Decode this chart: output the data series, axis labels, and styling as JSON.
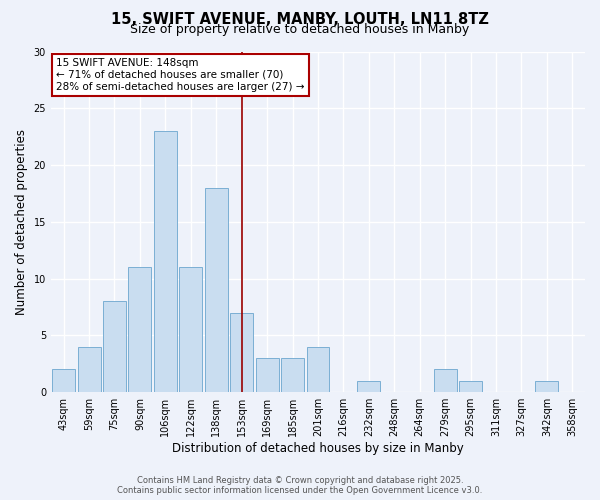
{
  "title": "15, SWIFT AVENUE, MANBY, LOUTH, LN11 8TZ",
  "subtitle": "Size of property relative to detached houses in Manby",
  "xlabel": "Distribution of detached houses by size in Manby",
  "ylabel": "Number of detached properties",
  "bar_labels": [
    "43sqm",
    "59sqm",
    "75sqm",
    "90sqm",
    "106sqm",
    "122sqm",
    "138sqm",
    "153sqm",
    "169sqm",
    "185sqm",
    "201sqm",
    "216sqm",
    "232sqm",
    "248sqm",
    "264sqm",
    "279sqm",
    "295sqm",
    "311sqm",
    "327sqm",
    "342sqm",
    "358sqm"
  ],
  "bar_values": [
    2,
    4,
    8,
    11,
    23,
    11,
    18,
    7,
    3,
    3,
    4,
    0,
    1,
    0,
    0,
    2,
    1,
    0,
    0,
    1,
    0
  ],
  "bar_color": "#c9ddf0",
  "bar_edge_color": "#7bafd4",
  "vline_index": 7,
  "vline_color": "#990000",
  "ylim": [
    0,
    30
  ],
  "yticks": [
    0,
    5,
    10,
    15,
    20,
    25,
    30
  ],
  "annotation_title": "15 SWIFT AVENUE: 148sqm",
  "annotation_line1": "← 71% of detached houses are smaller (70)",
  "annotation_line2": "28% of semi-detached houses are larger (27) →",
  "annotation_box_facecolor": "#ffffff",
  "annotation_box_edgecolor": "#aa0000",
  "footer1": "Contains HM Land Registry data © Crown copyright and database right 2025.",
  "footer2": "Contains public sector information licensed under the Open Government Licence v3.0.",
  "bg_color": "#eef2fa",
  "plot_bg_color": "#eef2fa",
  "title_fontsize": 10.5,
  "subtitle_fontsize": 9,
  "axis_label_fontsize": 8.5,
  "tick_fontsize": 7,
  "annotation_fontsize": 7.5,
  "footer_fontsize": 6
}
